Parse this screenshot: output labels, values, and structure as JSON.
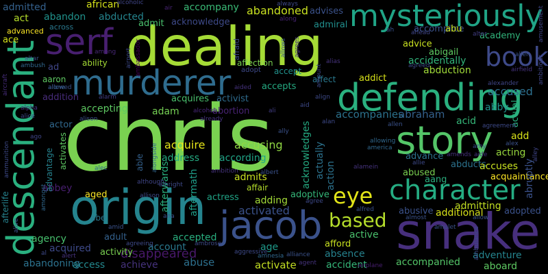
{
  "words": [
    {
      "text": "chris",
      "color": "#7ad151"
    },
    {
      "text": "dealing",
      "color": "#a5db36"
    },
    {
      "text": "snake",
      "color": "#472f7d"
    },
    {
      "text": "origin",
      "color": "#25848e"
    },
    {
      "text": "defending",
      "color": "#2ab07f"
    },
    {
      "text": "descendant",
      "color": "#2ab07f"
    },
    {
      "text": "murderer",
      "color": "#2f6c8e"
    },
    {
      "text": "story",
      "color": "#54c568"
    },
    {
      "text": "mysteriously",
      "color": "#20a486"
    },
    {
      "text": "jacob",
      "color": "#3b528b"
    },
    {
      "text": "character",
      "color": "#25ac82"
    },
    {
      "text": "serf",
      "color": "#481f70"
    },
    {
      "text": "book",
      "color": "#3e4a89"
    },
    {
      "text": "eye",
      "color": "#e2e418"
    },
    {
      "text": "based",
      "color": "#b5de2b"
    },
    {
      "text": "abandoned",
      "color": "#c8e020"
    },
    {
      "text": "accused",
      "color": "#2d708e"
    },
    {
      "text": "accompanies",
      "color": "#2c728e"
    },
    {
      "text": "acquire",
      "color": "#e5e419"
    },
    {
      "text": "accusing",
      "color": "#90d743"
    },
    {
      "text": "activated",
      "color": "#3b528b"
    },
    {
      "text": "accompanied",
      "color": "#54c568"
    },
    {
      "text": "disappeared",
      "color": "#48186a"
    },
    {
      "text": "accomplice",
      "color": "#3b528b"
    },
    {
      "text": "admitted",
      "color": "#34618d"
    },
    {
      "text": "african",
      "color": "#d5e21a"
    },
    {
      "text": "accompany",
      "color": "#3aba76"
    },
    {
      "text": "abu",
      "color": "#c8e020"
    },
    {
      "text": "act",
      "color": "#b5de2b"
    },
    {
      "text": "abandon",
      "color": "#20928c"
    },
    {
      "text": "abducted",
      "color": "#25848e"
    },
    {
      "text": "admit",
      "color": "#4ac16d"
    },
    {
      "text": "acknowledge",
      "color": "#3e4a89"
    },
    {
      "text": "admiral",
      "color": "#218f8d"
    },
    {
      "text": "advises",
      "color": "#3b528b"
    },
    {
      "text": "advanced",
      "color": "#fde725"
    },
    {
      "text": "across",
      "color": "#2a788e"
    },
    {
      "text": "academy",
      "color": "#31b57b"
    },
    {
      "text": "ace",
      "color": "#d5e21a"
    },
    {
      "text": "advice",
      "color": "#c8e020"
    },
    {
      "text": "abigail",
      "color": "#5ec962"
    },
    {
      "text": "accidentally",
      "color": "#31b57b"
    },
    {
      "text": "ability",
      "color": "#a5db36"
    },
    {
      "text": "affection",
      "color": "#7ad151"
    },
    {
      "text": "abduction",
      "color": "#a0da39"
    },
    {
      "text": "aaron",
      "color": "#5ec962"
    },
    {
      "text": "accept",
      "color": "#21918c"
    },
    {
      "text": "addict",
      "color": "#d8e219"
    },
    {
      "text": "accepts",
      "color": "#25ab82"
    },
    {
      "text": "affect",
      "color": "#2a788e"
    },
    {
      "text": "addition",
      "color": "#472c7a"
    },
    {
      "text": "acquires",
      "color": "#4ac16d"
    },
    {
      "text": "activist",
      "color": "#2f6c8e"
    },
    {
      "text": "abraham",
      "color": "#34618d"
    },
    {
      "text": "acid",
      "color": "#35b779"
    },
    {
      "text": "abby",
      "color": "#20928c"
    },
    {
      "text": "accepting",
      "color": "#5ec962"
    },
    {
      "text": "adam",
      "color": "#75d054"
    },
    {
      "text": "abortion",
      "color": "#482374"
    },
    {
      "text": "add",
      "color": "#d8e219"
    },
    {
      "text": "actor",
      "color": "#31688e"
    },
    {
      "text": "acting",
      "color": "#98d83e"
    },
    {
      "text": "according",
      "color": "#20a486"
    },
    {
      "text": "advance",
      "color": "#2c728e"
    },
    {
      "text": "abducts",
      "color": "#2c728e"
    },
    {
      "text": "address",
      "color": "#25ab82"
    },
    {
      "text": "accuses",
      "color": "#c8e020"
    },
    {
      "text": "abbey",
      "color": "#481f70"
    },
    {
      "text": "acquaintance",
      "color": "#1f9e89"
    },
    {
      "text": "admits",
      "color": "#fde725"
    },
    {
      "text": "aang",
      "color": "#c8e020"
    },
    {
      "text": "abused",
      "color": "#2ab07f"
    },
    {
      "text": "aged",
      "color": "#7ad151"
    },
    {
      "text": "actress",
      "color": "#2c728e"
    },
    {
      "text": "adoptive",
      "color": "#fde725"
    },
    {
      "text": "affair",
      "color": "#20a486"
    },
    {
      "text": "adding",
      "color": "#35b779"
    },
    {
      "text": "admitting",
      "color": "#b5de2b"
    },
    {
      "text": "abusive",
      "color": "#a2da37"
    },
    {
      "text": "additional",
      "color": "#c2df23"
    },
    {
      "text": "adopted",
      "color": "#3b528b"
    },
    {
      "text": "abe",
      "color": "#d8e219"
    },
    {
      "text": "agency",
      "color": "#3b528b"
    },
    {
      "text": "adult",
      "color": "#2a788e"
    },
    {
      "text": "accepted",
      "color": "#48c16e"
    },
    {
      "text": "active",
      "color": "#34618d"
    },
    {
      "text": "acquired",
      "color": "#29af7f"
    },
    {
      "text": "activity",
      "color": "#4ac16d"
    },
    {
      "text": "account",
      "color": "#3e4a89"
    },
    {
      "text": "age",
      "color": "#7ad151"
    },
    {
      "text": "afford",
      "color": "#2a788e"
    },
    {
      "text": "absence",
      "color": "#1f9a8a"
    },
    {
      "text": "adventure",
      "color": "#c8e020"
    },
    {
      "text": "abandoning",
      "color": "#26828e"
    },
    {
      "text": "access",
      "color": "#25848e"
    },
    {
      "text": "achieve",
      "color": "#2c728e"
    },
    {
      "text": "abuse",
      "color": "#23888e"
    },
    {
      "text": "activate",
      "color": "#46337e"
    },
    {
      "text": "accident",
      "color": "#2d708e"
    },
    {
      "text": "aboard",
      "color": "#c2df23"
    },
    {
      "text": "able",
      "color": "#35b779"
    },
    {
      "text": "activates",
      "color": "#5ec962"
    },
    {
      "text": "afterwards",
      "color": "#34618d"
    },
    {
      "text": "aftermath",
      "color": "#5ec962"
    },
    {
      "text": "actually",
      "color": "#2ab07f"
    },
    {
      "text": "action",
      "color": "#2c728e"
    },
    {
      "text": "acknowledges",
      "color": "#25ab82"
    },
    {
      "text": "advantage",
      "color": "#26828e"
    },
    {
      "text": "afterlife",
      "color": "#26828e"
    },
    {
      "text": "abruptly",
      "color": "#3b528b"
    },
    {
      "text": "actual",
      "color": "#2ab07f"
    },
    {
      "text": "alcoholic",
      "color": "#404688"
    },
    {
      "text": "air",
      "color": "#482475"
    },
    {
      "text": "always",
      "color": "#3e4a89"
    },
    {
      "text": "along",
      "color": "#482475"
    },
    {
      "text": "airport",
      "color": "#3e4a89"
    },
    {
      "text": "ambassador",
      "color": "#440154"
    },
    {
      "text": "among",
      "color": "#482878"
    },
    {
      "text": "altar",
      "color": "#3b528b"
    },
    {
      "text": "ambush",
      "color": "#31688e"
    },
    {
      "text": "alone",
      "color": "#31688e"
    },
    {
      "text": "allowed",
      "color": "#3b528b"
    },
    {
      "text": "aircraft",
      "color": "#472c7a"
    },
    {
      "text": "alarm",
      "color": "#433e85"
    },
    {
      "text": "alpha",
      "color": "#46337e"
    },
    {
      "text": "alice",
      "color": "#3e4a89"
    },
    {
      "text": "alcohol",
      "color": "#482878"
    },
    {
      "text": "alison",
      "color": "#3b528b"
    },
    {
      "text": "already",
      "color": "#46337e"
    },
    {
      "text": "ammunition",
      "color": "#3e4a89"
    },
    {
      "text": "ago",
      "color": "#404688"
    },
    {
      "text": "ali",
      "color": "#433e85"
    },
    {
      "text": "alec",
      "color": "#31688e"
    },
    {
      "text": "alongside",
      "color": "#31688e"
    },
    {
      "text": "ambition",
      "color": "#46337e"
    },
    {
      "text": "albert",
      "color": "#3b528b"
    },
    {
      "text": "alamein",
      "color": "#46337e"
    },
    {
      "text": "although",
      "color": "#404688"
    },
    {
      "text": "allison",
      "color": "#3e4a89"
    },
    {
      "text": "amongst",
      "color": "#31688e"
    },
    {
      "text": "alfred",
      "color": "#3b528b"
    },
    {
      "text": "amid",
      "color": "#3b528b"
    },
    {
      "text": "agreeing",
      "color": "#3e4a89"
    },
    {
      "text": "ambrose",
      "color": "#3e4a89"
    },
    {
      "text": "aggressive",
      "color": "#3e4a89"
    },
    {
      "text": "almost",
      "color": "#3b528b"
    },
    {
      "text": "allow",
      "color": "#3b528b"
    },
    {
      "text": "alert",
      "color": "#46337e"
    },
    {
      "text": "amnesia",
      "color": "#31688e"
    },
    {
      "text": "alliance",
      "color": "#3b528b"
    },
    {
      "text": "agent",
      "color": "#46337e"
    },
    {
      "text": "airplane",
      "color": "#481f70"
    },
    {
      "text": "amusement",
      "color": "#404688"
    },
    {
      "text": "ambulance",
      "color": "#3e4a89"
    },
    {
      "text": "amulet",
      "color": "#3b528b"
    },
    {
      "text": "agreement",
      "color": "#3e4a89"
    },
    {
      "text": "amends",
      "color": "#46337e"
    },
    {
      "text": "aide",
      "color": "#46337e"
    },
    {
      "text": "allie",
      "color": "#3e4a89"
    },
    {
      "text": "america",
      "color": "#31688e"
    },
    {
      "text": "allowing",
      "color": "#31688e"
    },
    {
      "text": "alley",
      "color": "#404688"
    },
    {
      "text": "alex",
      "color": "#3b528b"
    },
    {
      "text": "amy",
      "color": "#3b528b"
    },
    {
      "text": "allen",
      "color": "#3b528b"
    },
    {
      "text": "ally",
      "color": "#3b528b"
    },
    {
      "text": "align",
      "color": "#3e4a89"
    },
    {
      "text": "alan",
      "color": "#3e4a89"
    },
    {
      "text": "alias",
      "color": "#46337e"
    },
    {
      "text": "amount",
      "color": "#3e4a89"
    },
    {
      "text": "adopt",
      "color": "#3e4a89"
    },
    {
      "text": "aided",
      "color": "#46337e"
    },
    {
      "text": "afraid",
      "color": "#3e4a89"
    },
    {
      "text": "agrees",
      "color": "#46337e"
    },
    {
      "text": "allows",
      "color": "#3b528b"
    },
    {
      "text": "agreed",
      "color": "#3e4a89"
    },
    {
      "text": "airfield",
      "color": "#46337e"
    },
    {
      "text": "alexander",
      "color": "#404688"
    },
    {
      "text": "ambitious",
      "color": "#404688"
    },
    {
      "text": "alien",
      "color": "#3b528b"
    },
    {
      "text": "alter",
      "color": "#433e85"
    },
    {
      "text": "ahead",
      "color": "#404688"
    },
    {
      "text": "ah",
      "color": "#3b528b"
    },
    {
      "text": "al",
      "color": "#3e4a89"
    },
    {
      "text": "ad",
      "color": "#404688"
    },
    {
      "text": "aid",
      "color": "#3e4a89"
    },
    {
      "text": "alive",
      "color": "#3b528b"
    },
    {
      "text": "ana",
      "color": "#3b528b"
    },
    {
      "text": "agree",
      "color": "#3e4a89"
    },
    {
      "text": "albright",
      "color": "#3e4a89"
    }
  ]
}
